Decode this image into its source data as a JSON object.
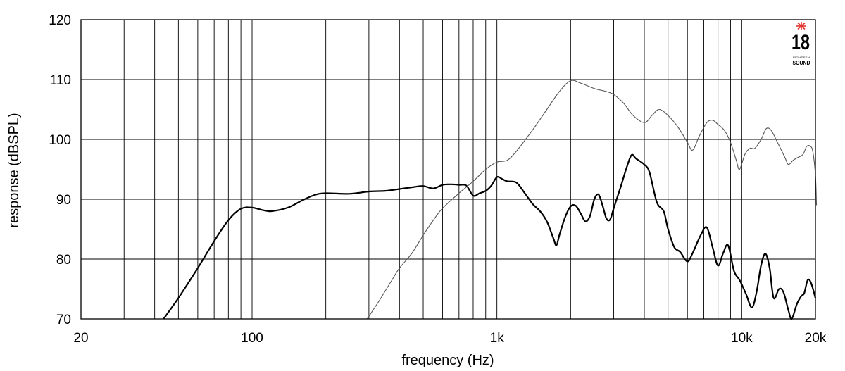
{
  "chart_data": {
    "type": "line",
    "xlabel": "frequency (Hz)",
    "ylabel": "response (dBSPL)",
    "x_scale": "log",
    "xlim": [
      20,
      20000
    ],
    "ylim": [
      70,
      120
    ],
    "grid": true,
    "x_tick_labels": [
      "20",
      "100",
      "1k",
      "10k",
      "20k"
    ],
    "x_tick_values": [
      20,
      100,
      1000,
      10000,
      20000
    ],
    "y_tick_labels": [
      "70",
      "80",
      "90",
      "100",
      "110",
      "120"
    ],
    "y_tick_values": [
      70,
      80,
      90,
      100,
      110,
      120
    ],
    "series": [
      {
        "stroke": "#000000",
        "emphasis": "bold",
        "points": [
          [
            43.5,
            70.0
          ],
          [
            50,
            73.5
          ],
          [
            60,
            78.5
          ],
          [
            70,
            83.0
          ],
          [
            80,
            86.5
          ],
          [
            90,
            88.4
          ],
          [
            100,
            88.6
          ],
          [
            110,
            88.2
          ],
          [
            120,
            88.0
          ],
          [
            140,
            88.6
          ],
          [
            160,
            89.8
          ],
          [
            180,
            90.7
          ],
          [
            200,
            91.0
          ],
          [
            250,
            90.9
          ],
          [
            300,
            91.3
          ],
          [
            350,
            91.4
          ],
          [
            400,
            91.7
          ],
          [
            450,
            92.0
          ],
          [
            500,
            92.2
          ],
          [
            550,
            91.8
          ],
          [
            600,
            92.4
          ],
          [
            650,
            92.5
          ],
          [
            700,
            92.4
          ],
          [
            750,
            92.3
          ],
          [
            800,
            90.6
          ],
          [
            850,
            91.0
          ],
          [
            900,
            91.4
          ],
          [
            950,
            92.3
          ],
          [
            1000,
            93.7
          ],
          [
            1050,
            93.4
          ],
          [
            1100,
            93.0
          ],
          [
            1200,
            92.8
          ],
          [
            1300,
            91.0
          ],
          [
            1400,
            89.2
          ],
          [
            1500,
            88.0
          ],
          [
            1600,
            86.3
          ],
          [
            1700,
            83.5
          ],
          [
            1750,
            82.3
          ],
          [
            1800,
            84.0
          ],
          [
            1900,
            87.0
          ],
          [
            2000,
            88.8
          ],
          [
            2100,
            88.9
          ],
          [
            2200,
            87.6
          ],
          [
            2300,
            86.3
          ],
          [
            2400,
            87.2
          ],
          [
            2500,
            90.0
          ],
          [
            2600,
            90.8
          ],
          [
            2700,
            89.0
          ],
          [
            2800,
            86.8
          ],
          [
            2900,
            86.6
          ],
          [
            3000,
            88.5
          ],
          [
            3200,
            92.0
          ],
          [
            3400,
            95.5
          ],
          [
            3550,
            97.4
          ],
          [
            3700,
            96.8
          ],
          [
            4000,
            95.8
          ],
          [
            4200,
            94.5
          ],
          [
            4500,
            89.5
          ],
          [
            4800,
            88.0
          ],
          [
            5000,
            85.0
          ],
          [
            5300,
            82.0
          ],
          [
            5600,
            81.2
          ],
          [
            6000,
            79.6
          ],
          [
            6300,
            81.0
          ],
          [
            6800,
            84.0
          ],
          [
            7200,
            85.3
          ],
          [
            7600,
            82.0
          ],
          [
            8000,
            78.9
          ],
          [
            8400,
            81.0
          ],
          [
            8800,
            82.3
          ],
          [
            9300,
            78.0
          ],
          [
            9800,
            76.5
          ],
          [
            10400,
            74.2
          ],
          [
            11000,
            71.9
          ],
          [
            11500,
            74.5
          ],
          [
            12000,
            79.0
          ],
          [
            12500,
            80.9
          ],
          [
            13000,
            78.5
          ],
          [
            13500,
            73.5
          ],
          [
            14200,
            75.0
          ],
          [
            14800,
            74.5
          ],
          [
            15500,
            71.5
          ],
          [
            16000,
            70.0
          ],
          [
            16800,
            72.5
          ],
          [
            17500,
            73.8
          ],
          [
            18000,
            74.3
          ],
          [
            18600,
            76.5
          ],
          [
            19200,
            76.0
          ],
          [
            20000,
            73.5
          ]
        ]
      },
      {
        "stroke": "#555555",
        "emphasis": "thin",
        "points": [
          [
            295,
            70.0
          ],
          [
            330,
            73.0
          ],
          [
            370,
            76.3
          ],
          [
            400,
            78.5
          ],
          [
            450,
            81.0
          ],
          [
            500,
            84.0
          ],
          [
            550,
            86.5
          ],
          [
            600,
            88.5
          ],
          [
            700,
            91.0
          ],
          [
            800,
            93.0
          ],
          [
            900,
            95.0
          ],
          [
            1000,
            96.2
          ],
          [
            1100,
            96.5
          ],
          [
            1200,
            98.0
          ],
          [
            1400,
            101.6
          ],
          [
            1600,
            105.0
          ],
          [
            1800,
            108.0
          ],
          [
            2000,
            109.8
          ],
          [
            2200,
            109.4
          ],
          [
            2500,
            108.5
          ],
          [
            2800,
            108.0
          ],
          [
            3000,
            107.5
          ],
          [
            3300,
            106.0
          ],
          [
            3600,
            104.0
          ],
          [
            4000,
            102.8
          ],
          [
            4300,
            104.0
          ],
          [
            4600,
            105.0
          ],
          [
            5000,
            104.0
          ],
          [
            5500,
            102.0
          ],
          [
            6000,
            99.5
          ],
          [
            6300,
            98.2
          ],
          [
            6700,
            100.5
          ],
          [
            7200,
            102.8
          ],
          [
            7600,
            103.2
          ],
          [
            8000,
            102.5
          ],
          [
            8500,
            101.5
          ],
          [
            9000,
            99.5
          ],
          [
            9500,
            96.5
          ],
          [
            9800,
            95.0
          ],
          [
            10300,
            97.5
          ],
          [
            10800,
            98.5
          ],
          [
            11300,
            98.5
          ],
          [
            12000,
            100.0
          ],
          [
            12600,
            101.8
          ],
          [
            13200,
            101.5
          ],
          [
            14000,
            99.5
          ],
          [
            15000,
            97.0
          ],
          [
            15500,
            95.8
          ],
          [
            16200,
            96.5
          ],
          [
            17000,
            97.0
          ],
          [
            17800,
            97.5
          ],
          [
            18400,
            98.8
          ],
          [
            19000,
            98.9
          ],
          [
            19500,
            98.0
          ],
          [
            20000,
            94.0
          ],
          [
            20200,
            89.0
          ]
        ]
      }
    ]
  },
  "logo": {
    "number": "18",
    "small_text": "EIGHTEEN",
    "word": "SOUND",
    "star_color": "#e0302a"
  }
}
